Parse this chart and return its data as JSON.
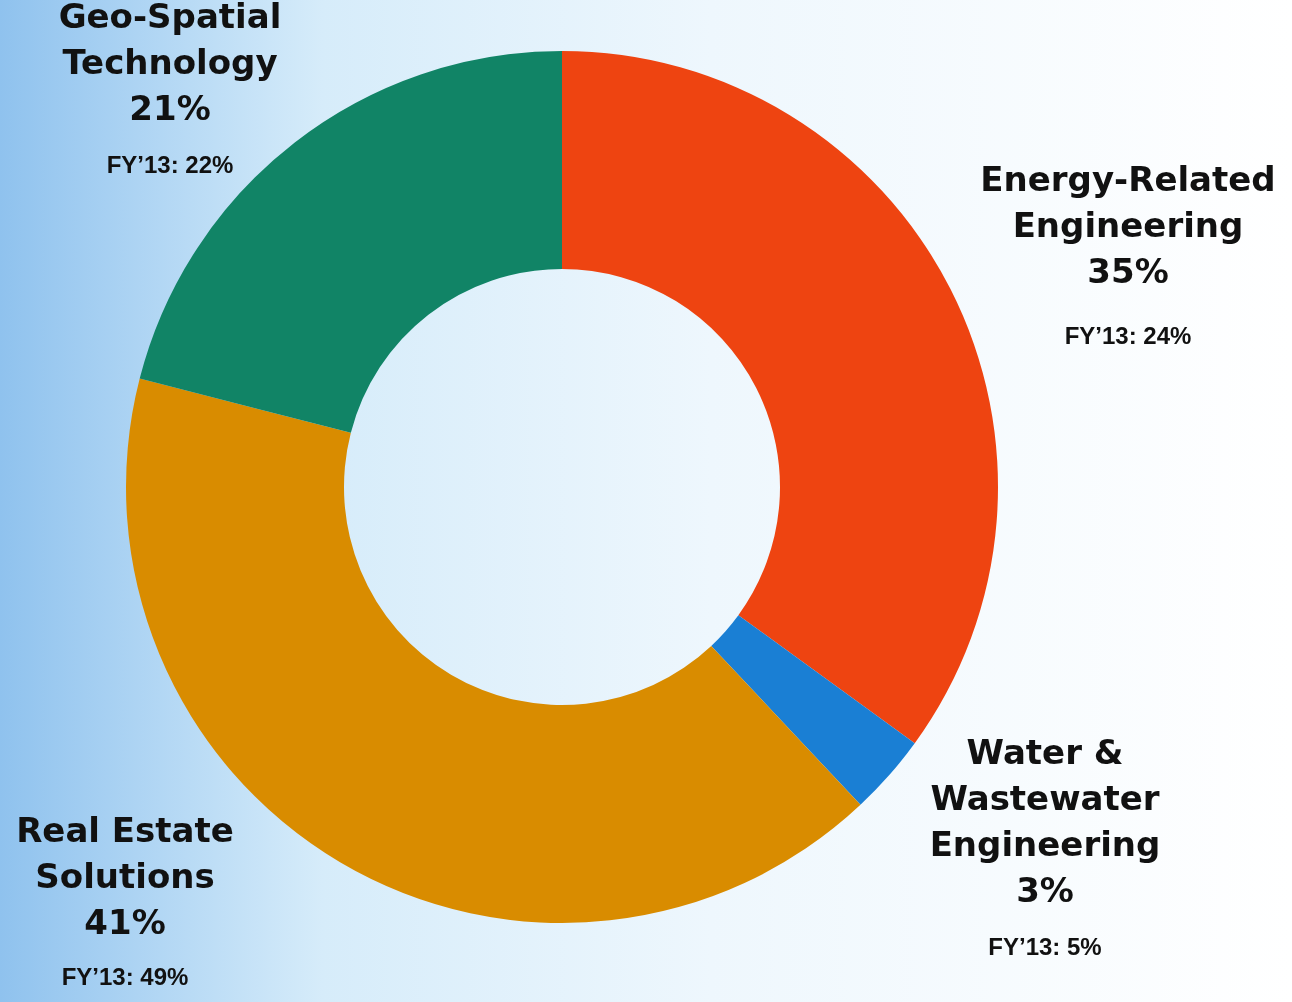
{
  "chart_data": {
    "type": "donut",
    "categories": [
      "Energy-Related Engineering",
      "Water & Wastewater Engineering",
      "Real Estate Solutions",
      "Geo-Spatial Technology"
    ],
    "values": [
      35,
      3,
      41,
      21
    ],
    "colors": [
      "#ee4411",
      "#1a7fd4",
      "#d98c00",
      "#118466"
    ],
    "value_labels": [
      "35%",
      "3%",
      "41%",
      "21%"
    ],
    "annotations": [
      "FY’13: 24%",
      "FY’13: 5%",
      "FY’13: 49%",
      "FY’13: 22%"
    ],
    "legend": false
  }
}
